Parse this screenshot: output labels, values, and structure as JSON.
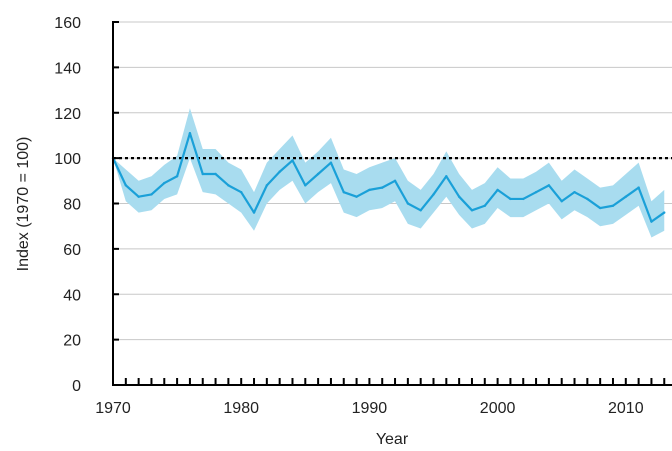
{
  "chart_data": {
    "type": "line",
    "title": "",
    "xlabel": "Year",
    "ylabel": "Index (1970 = 100)",
    "xlim": [
      1970,
      2013
    ],
    "ylim": [
      0,
      160
    ],
    "x_ticks": [
      1970,
      1980,
      1990,
      2000,
      2010
    ],
    "y_ticks": [
      0,
      20,
      40,
      60,
      80,
      100,
      120,
      140,
      160
    ],
    "grid": {
      "horizontal": true,
      "vertical": false
    },
    "reference_line": {
      "y": 100,
      "style": "dotted",
      "color": "#000000"
    },
    "colors": {
      "line": "#1aa0d8",
      "band": "#a8dcef",
      "grid": "#c8c8c8",
      "axis": "#000000"
    },
    "series": [
      {
        "x": [
          1970,
          1971,
          1972,
          1973,
          1974,
          1975,
          1976,
          1977,
          1978,
          1979,
          1980,
          1981,
          1982,
          1983,
          1984,
          1985,
          1986,
          1987,
          1988,
          1989,
          1990,
          1991,
          1992,
          1993,
          1994,
          1995,
          1996,
          1997,
          1998,
          1999,
          2000,
          2001,
          2002,
          2003,
          2004,
          2005,
          2006,
          2007,
          2008,
          2009,
          2010,
          2011,
          2012,
          2013
        ],
        "values": [
          100,
          88,
          83,
          84,
          89,
          92,
          111,
          93,
          93,
          88,
          85,
          76,
          88,
          94,
          99,
          88,
          93,
          98,
          85,
          83,
          86,
          87,
          90,
          80,
          77,
          84,
          92,
          83,
          77,
          79,
          86,
          82,
          82,
          85,
          88,
          81,
          85,
          82,
          78,
          79,
          83,
          87,
          72,
          76
        ],
        "lower": [
          100,
          81,
          76,
          77,
          82,
          84,
          100,
          85,
          84,
          80,
          76,
          68,
          80,
          86,
          90,
          80,
          85,
          89,
          76,
          74,
          77,
          78,
          81,
          71,
          69,
          76,
          83,
          75,
          69,
          71,
          78,
          74,
          74,
          77,
          80,
          73,
          77,
          74,
          70,
          71,
          75,
          79,
          65,
          68
        ],
        "upper": [
          100,
          95,
          90,
          92,
          97,
          101,
          122,
          104,
          104,
          98,
          95,
          85,
          98,
          104,
          110,
          98,
          103,
          109,
          95,
          93,
          96,
          98,
          100,
          90,
          86,
          93,
          103,
          93,
          86,
          89,
          96,
          91,
          91,
          94,
          98,
          90,
          95,
          91,
          87,
          88,
          93,
          98,
          81,
          86
        ]
      }
    ]
  }
}
